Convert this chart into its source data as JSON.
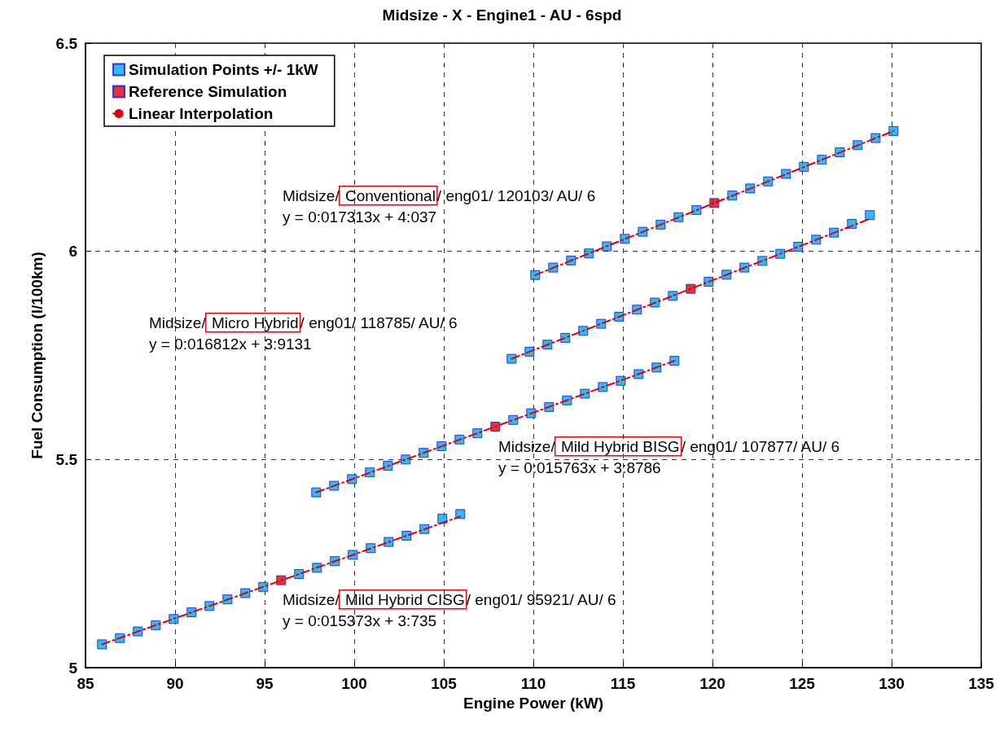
{
  "chart_data": {
    "type": "scatter",
    "title": "Midsize - X - Engine1 - AU - 6spd",
    "xlabel": "Engine Power (kW)",
    "ylabel": "Fuel Consumption (l/100km)",
    "xlim": [
      85,
      135
    ],
    "xticks": [
      85,
      90,
      95,
      100,
      105,
      110,
      115,
      120,
      125,
      130,
      135
    ],
    "ylim": [
      5,
      6.5
    ],
    "yticks": [
      5,
      5.5,
      6,
      6.5
    ],
    "grid": true,
    "legend": "top left",
    "annotations": [
      "Midsize/ Conventional/ eng01/ 120103/ AU/ 6\ny = 0:017313x + 4:037",
      "Midsize/ Micro Hybrid/ eng01/ 118785/ AU/ 6\ny = 0:016812x + 3:9131",
      "Midsize/ Mild Hybrid BISG/ eng01/ 107877/ AU/ 6\ny = 0:015763x + 3:8786",
      "Midsize/ Mild Hybrid CISG/ eng01/ 95921/ AU/ 6\ny = 0:015373x + 3:735"
    ],
    "series": [
      {
        "name": "Simulation Points +/- 1kW",
        "marker": "square",
        "color": "#00aaee",
        "x": [
          85.921,
          86.921,
          87.921,
          88.921,
          89.921,
          90.921,
          91.921,
          92.921,
          93.921,
          94.921,
          96.921,
          97.921,
          98.921,
          99.921,
          100.921,
          101.921,
          102.921,
          103.921,
          104.921,
          105.921,
          97.877,
          98.877,
          99.877,
          100.877,
          101.877,
          102.877,
          103.877,
          104.877,
          105.877,
          106.877,
          108.877,
          109.877,
          110.877,
          111.877,
          112.877,
          113.877,
          114.877,
          115.877,
          116.877,
          117.877,
          108.785,
          109.785,
          110.785,
          111.785,
          112.785,
          113.785,
          114.785,
          115.785,
          116.785,
          117.785,
          119.785,
          120.785,
          121.785,
          122.785,
          123.785,
          124.785,
          125.785,
          126.785,
          127.785,
          128.785,
          110.103,
          111.103,
          112.103,
          113.103,
          114.103,
          115.103,
          116.103,
          117.103,
          118.103,
          119.103,
          121.103,
          122.103,
          123.103,
          124.103,
          125.103,
          126.103,
          127.103,
          128.103,
          129.103,
          130.103
        ],
        "values": [
          5.056,
          5.071,
          5.087,
          5.102,
          5.117,
          5.133,
          5.148,
          5.164,
          5.179,
          5.194,
          5.225,
          5.24,
          5.256,
          5.271,
          5.287,
          5.302,
          5.317,
          5.333,
          5.358,
          5.369,
          5.421,
          5.437,
          5.453,
          5.469,
          5.485,
          5.5,
          5.516,
          5.532,
          5.548,
          5.563,
          5.595,
          5.611,
          5.626,
          5.642,
          5.658,
          5.674,
          5.689,
          5.705,
          5.721,
          5.737,
          5.742,
          5.759,
          5.776,
          5.792,
          5.809,
          5.826,
          5.843,
          5.86,
          5.877,
          5.893,
          5.927,
          5.944,
          5.961,
          5.977,
          5.994,
          6.011,
          6.028,
          6.045,
          6.066,
          6.087,
          5.943,
          5.961,
          5.978,
          5.995,
          6.012,
          6.03,
          6.047,
          6.064,
          6.082,
          6.099,
          6.134,
          6.151,
          6.168,
          6.186,
          6.203,
          6.22,
          6.238,
          6.255,
          6.272,
          6.289
        ]
      },
      {
        "name": "Reference Simulation",
        "marker": "square",
        "color": "#e00000",
        "x": [
          95.921,
          107.877,
          118.785,
          120.103
        ],
        "values": [
          5.21,
          5.579,
          5.91,
          6.116
        ]
      },
      {
        "name": "Linear Interpolation",
        "type": "line",
        "marker": "none",
        "line_style": "dashed",
        "color": "#e00000",
        "x": [
          85.921,
          105.921
        ],
        "values": [
          5.056,
          5.363
        ]
      },
      {
        "type": "line",
        "marker": "none",
        "line_style": "dashed",
        "color": "#e00000",
        "x": [
          97.877,
          117.877
        ],
        "values": [
          5.421,
          5.737
        ]
      },
      {
        "type": "line",
        "marker": "none",
        "line_style": "dashed",
        "color": "#e00000",
        "x": [
          108.785,
          128.785
        ],
        "values": [
          5.742,
          6.078
        ]
      },
      {
        "type": "line",
        "marker": "none",
        "line_style": "dashed",
        "color": "#e00000",
        "x": [
          110.103,
          130.103
        ],
        "values": [
          5.943,
          6.289
        ]
      }
    ]
  }
}
